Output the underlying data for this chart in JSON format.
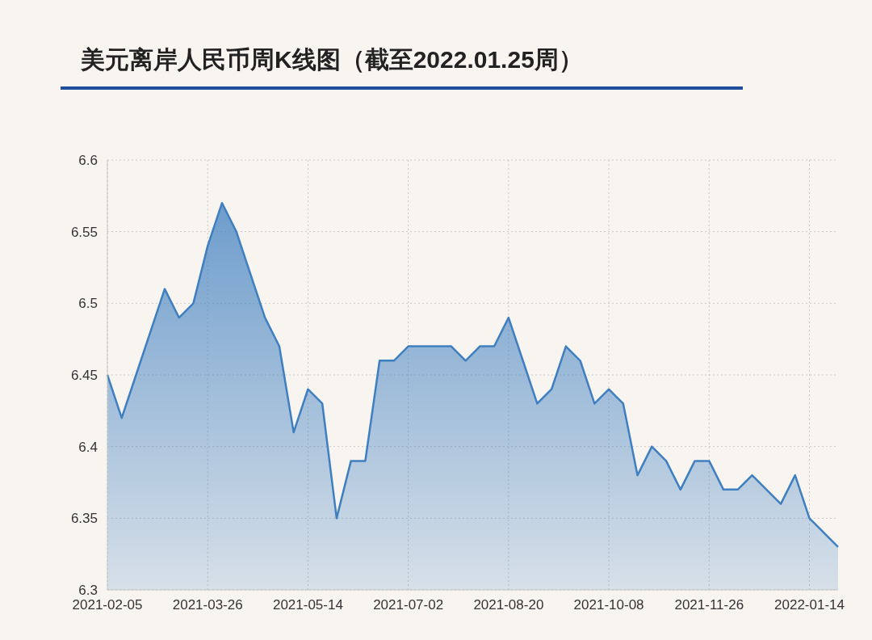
{
  "chart_data": {
    "type": "area",
    "title": "美元离岸人民币周K线图（截至2022.01.25周）",
    "categories": [
      "2021-02-05",
      null,
      null,
      null,
      null,
      null,
      null,
      "2021-03-26",
      null,
      null,
      null,
      null,
      null,
      null,
      "2021-05-14",
      null,
      null,
      null,
      null,
      null,
      null,
      "2021-07-02",
      null,
      null,
      null,
      null,
      null,
      null,
      "2021-08-20",
      null,
      null,
      null,
      null,
      null,
      null,
      "2021-10-08",
      null,
      null,
      null,
      null,
      null,
      null,
      "2021-11-26",
      null,
      null,
      null,
      null,
      null,
      null,
      "2022-01-14",
      null,
      null
    ],
    "series": [
      {
        "color": "#3f7fc0",
        "values": [
          6.45,
          6.42,
          6.45,
          6.48,
          6.51,
          6.49,
          6.5,
          6.54,
          6.57,
          6.55,
          6.52,
          6.49,
          6.47,
          6.41,
          6.44,
          6.43,
          6.35,
          6.39,
          6.39,
          6.46,
          6.46,
          6.47,
          6.47,
          6.47,
          6.47,
          6.46,
          6.47,
          6.47,
          6.49,
          6.46,
          6.43,
          6.44,
          6.47,
          6.46,
          6.43,
          6.44,
          6.43,
          6.38,
          6.4,
          6.39,
          6.37,
          6.39,
          6.39,
          6.37,
          6.37,
          6.38,
          6.37,
          6.36,
          6.38,
          6.35,
          6.34,
          6.33
        ]
      }
    ],
    "ylim": [
      6.3,
      6.6
    ],
    "yticks": [
      6.3,
      6.35,
      6.4,
      6.45,
      6.5,
      6.55,
      6.6
    ],
    "grid": true
  }
}
